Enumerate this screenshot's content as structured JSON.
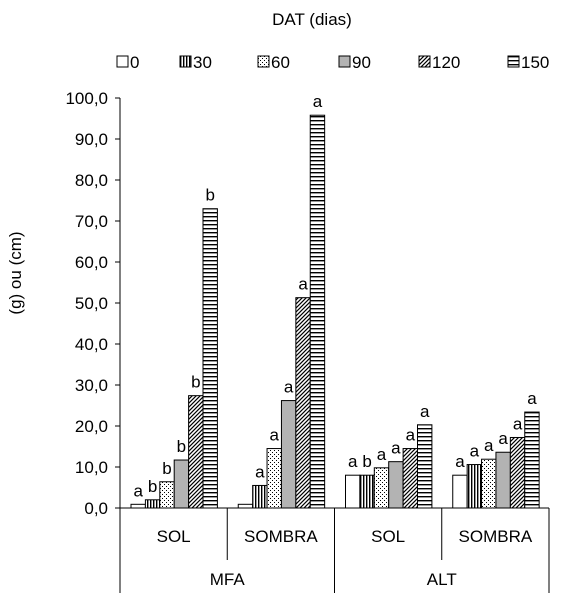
{
  "chart_data": {
    "type": "bar",
    "legend_title": "DAT (dias)",
    "legend_position": "top",
    "ylabel": "(g) ou (cm)",
    "ylim": [
      0,
      100
    ],
    "ytick_labels": [
      "0,0",
      "10,0",
      "20,0",
      "30,0",
      "40,0",
      "50,0",
      "60,0",
      "70,0",
      "80,0",
      "90,0",
      "100,0"
    ],
    "groups": [
      {
        "label": "MFA",
        "categories": [
          "SOL",
          "SOMBRA"
        ]
      },
      {
        "label": "ALT",
        "categories": [
          "SOL",
          "SOMBRA"
        ]
      }
    ],
    "categories": [
      "SOL",
      "SOMBRA",
      "SOL",
      "SOMBRA"
    ],
    "series": [
      {
        "name": "0",
        "pattern": "empty",
        "values": [
          0.9,
          0.9,
          8.0,
          8.0
        ]
      },
      {
        "name": "30",
        "pattern": "vlines",
        "values": [
          2.0,
          5.5,
          8.0,
          10.6
        ]
      },
      {
        "name": "60",
        "pattern": "dots",
        "values": [
          6.4,
          14.5,
          9.8,
          11.9
        ]
      },
      {
        "name": "90",
        "pattern": "gray",
        "values": [
          11.7,
          26.2,
          11.3,
          13.6
        ]
      },
      {
        "name": "120",
        "pattern": "diagonal",
        "values": [
          27.4,
          51.3,
          14.5,
          17.2
        ]
      },
      {
        "name": "150",
        "pattern": "hlines",
        "values": [
          73.0,
          95.8,
          20.3,
          23.4
        ]
      }
    ],
    "bar_labels": [
      [
        "a",
        "b",
        "b",
        "b",
        "b",
        "b"
      ],
      [
        "",
        "a",
        "a",
        "a",
        "a",
        "a"
      ],
      [
        "a",
        "b",
        "a",
        "a",
        "a",
        "a"
      ],
      [
        "a",
        "a",
        "a",
        "a",
        "a",
        "a"
      ]
    ],
    "grid": false
  }
}
